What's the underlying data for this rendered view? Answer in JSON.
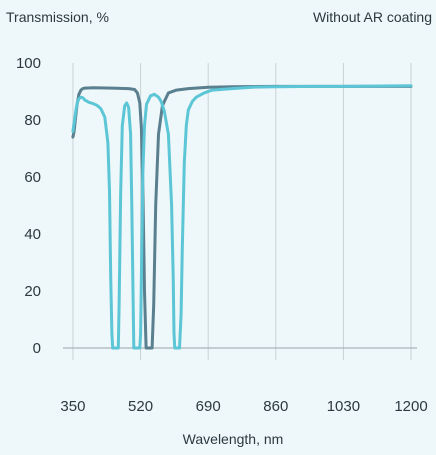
{
  "chart_data": {
    "type": "line",
    "title": "",
    "ylabel": "Transmission, %",
    "xlabel": "Wavelength, nm",
    "annotation": "Without AR coating",
    "xlim": [
      325,
      1215
    ],
    "ylim": [
      0,
      100
    ],
    "xticks": [
      350,
      520,
      690,
      860,
      1030,
      1200
    ],
    "yticks": [
      0,
      20,
      40,
      60,
      80,
      100
    ],
    "grid": "vertical",
    "legend": "none",
    "series": [
      {
        "color": "#5a7f8f",
        "x": [
          350,
          353,
          356,
          360,
          365,
          370,
          375,
          380,
          400,
          450,
          490,
          505,
          512,
          518,
          522,
          526,
          530,
          534,
          538,
          541,
          545,
          549,
          553,
          558,
          565,
          575,
          590,
          610,
          640,
          690,
          750,
          860,
          1030,
          1200
        ],
        "y": [
          74,
          76,
          80,
          85,
          89,
          90.5,
          91,
          91.2,
          91.3,
          91.2,
          91,
          90.7,
          89.5,
          86,
          77,
          55,
          20,
          0,
          0,
          0,
          0,
          0,
          15,
          50,
          75,
          85,
          89.5,
          90.5,
          91,
          91.5,
          91.7,
          91.8,
          91.8,
          91.8
        ]
      },
      {
        "color": "#5cc6d6",
        "x": [
          350,
          353,
          357,
          361,
          365,
          370,
          375,
          380,
          390,
          400,
          410,
          420,
          430,
          438,
          442,
          445,
          448,
          450,
          455,
          460,
          464,
          466,
          470,
          474,
          480,
          485,
          490,
          495,
          498,
          501,
          503,
          505,
          509,
          512,
          515,
          518,
          520,
          522,
          526,
          530,
          535,
          545,
          555,
          565,
          572,
          580,
          590,
          598,
          602,
          604,
          606,
          608,
          610,
          615,
          618,
          622,
          625,
          630,
          635,
          640,
          650,
          660,
          680,
          700,
          750,
          800,
          860,
          950,
          1030,
          1100,
          1200
        ],
        "y": [
          76,
          79,
          83,
          86,
          87.5,
          88,
          87.8,
          87,
          86.2,
          85.8,
          85.2,
          84,
          81,
          72,
          55,
          25,
          5,
          0,
          0,
          0,
          0,
          15,
          55,
          78,
          85,
          86,
          84.5,
          75,
          50,
          20,
          0,
          0,
          0,
          0,
          0,
          0,
          5,
          25,
          62,
          78,
          85.5,
          88.5,
          89,
          88,
          86.5,
          83,
          75,
          50,
          25,
          5,
          0,
          0,
          0,
          0,
          0,
          12,
          35,
          65,
          78,
          83.5,
          86.5,
          88,
          89.5,
          90.5,
          91,
          91.5,
          91.7,
          91.8,
          91.8,
          91.9,
          92
        ]
      }
    ]
  }
}
